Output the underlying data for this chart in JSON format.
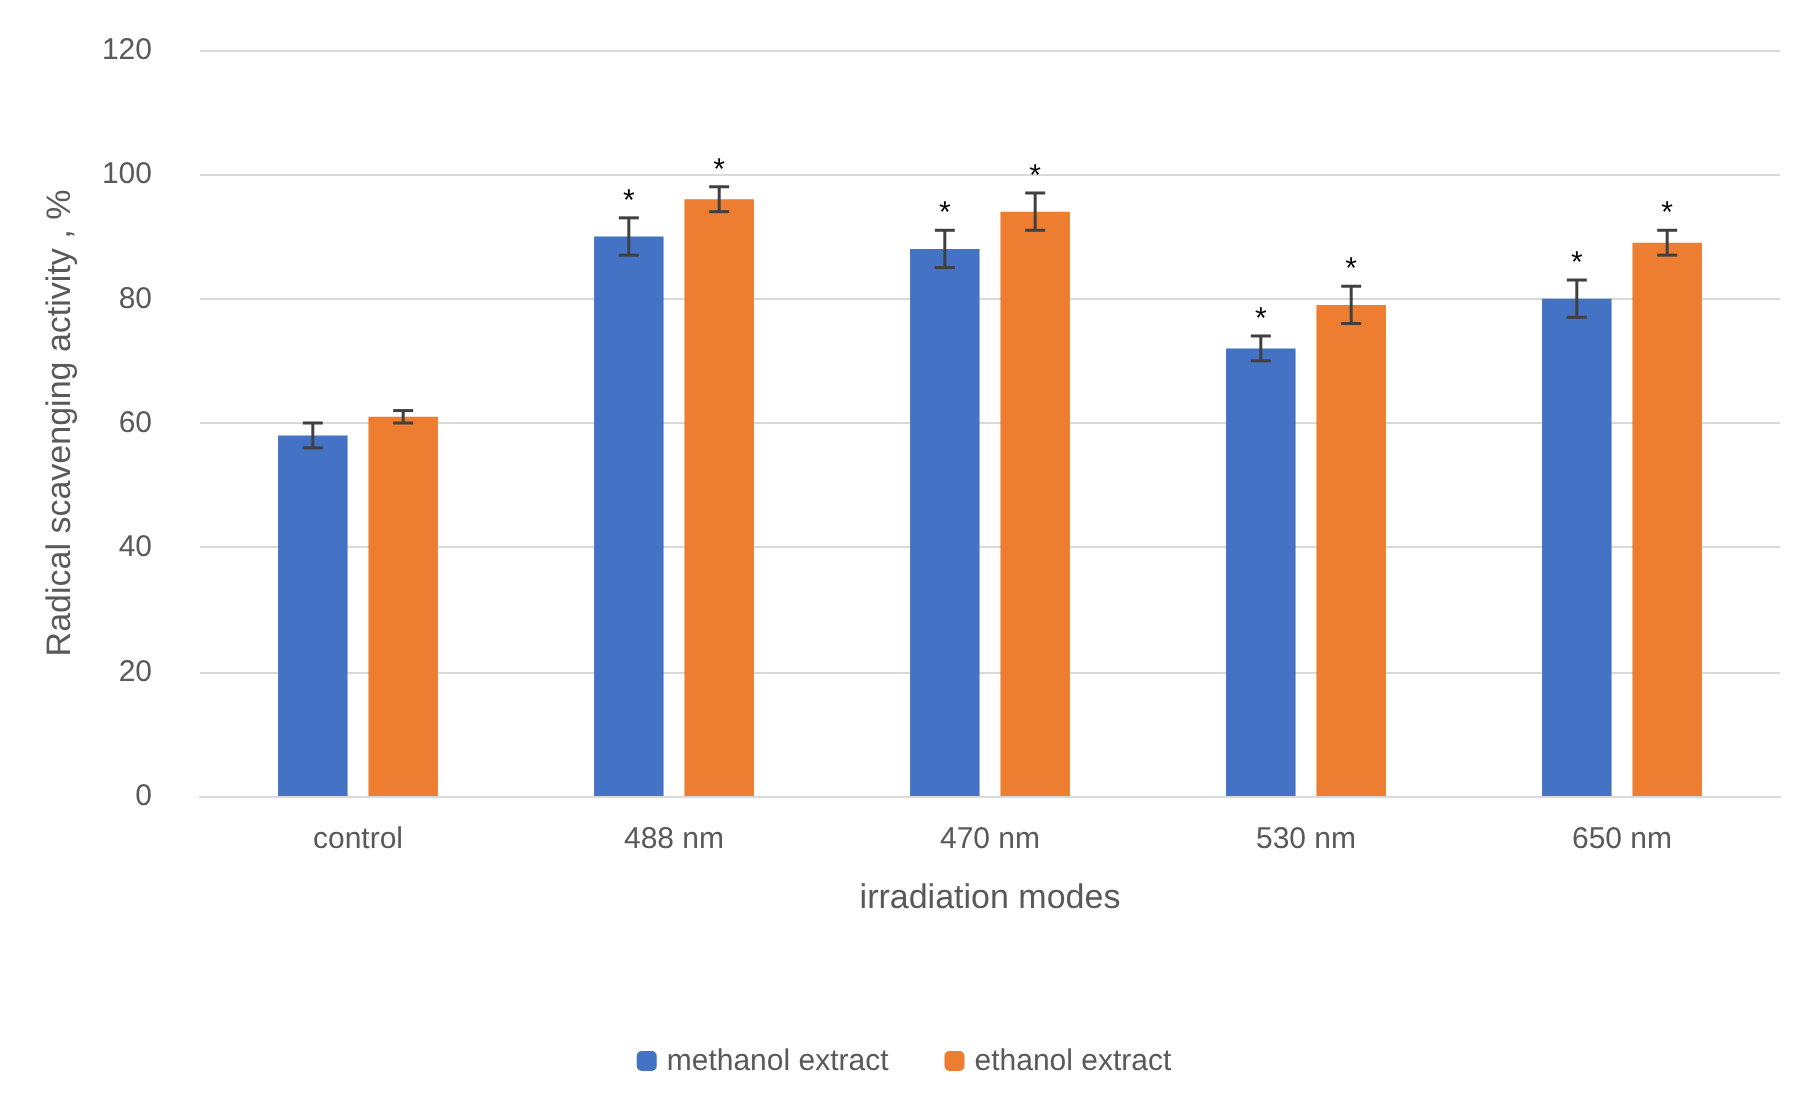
{
  "chart_data": {
    "type": "bar",
    "xlabel": "irradiation modes",
    "ylabel": "Radical scavenging activity , %",
    "categories": [
      "control",
      "488 nm",
      "470 nm",
      "530 nm",
      "650 nm"
    ],
    "series": [
      {
        "name": "methanol extract",
        "color": "#4472c4",
        "values": [
          58,
          90,
          88,
          72,
          80
        ],
        "errors": [
          2,
          3,
          3,
          2,
          3
        ],
        "value_labels": [
          null,
          "*",
          "*",
          "*",
          "*"
        ]
      },
      {
        "name": "ethanol extract",
        "color": "#ed7d31",
        "values": [
          61,
          96,
          94,
          79,
          89
        ],
        "errors": [
          1,
          2,
          3,
          3,
          2
        ],
        "value_labels": [
          null,
          "*",
          "*",
          "*",
          "*"
        ]
      }
    ],
    "ylim": [
      0,
      120
    ],
    "yticks": [
      0,
      20,
      40,
      60,
      80,
      100,
      120
    ],
    "grid": "y",
    "legend": "bottom"
  }
}
